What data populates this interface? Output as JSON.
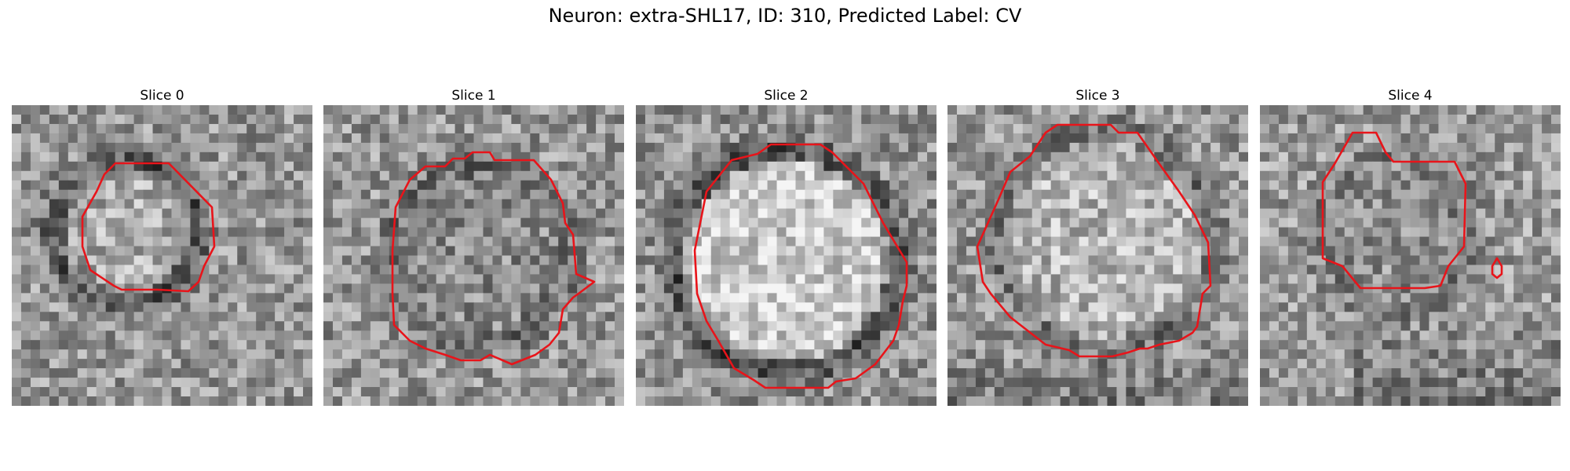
{
  "figure": {
    "title": "Neuron: extra-SHL17, ID: 310, Predicted Label: CV"
  },
  "panels": [
    {
      "title": "Slice 0"
    },
    {
      "title": "Slice 1"
    },
    {
      "title": "Slice 2"
    },
    {
      "title": "Slice 3"
    },
    {
      "title": "Slice 4"
    }
  ],
  "colors": {
    "contour": "#e8141a",
    "background": "#ffffff"
  },
  "colormap": "grayscale"
}
